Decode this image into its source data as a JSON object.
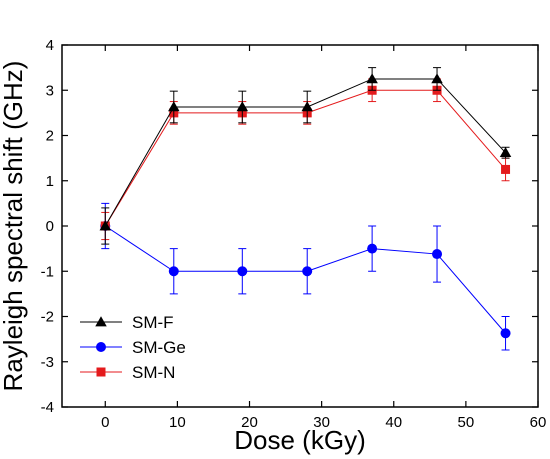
{
  "chart_data": {
    "type": "line",
    "title": "",
    "xlabel": "Dose (kGy)",
    "ylabel": "Rayleigh spectral shift (GHz)",
    "xlim": [
      -6,
      60
    ],
    "ylim": [
      -4,
      4
    ],
    "xticks": [
      0,
      10,
      20,
      30,
      40,
      50,
      60
    ],
    "yticks": [
      -4,
      -3,
      -2,
      -1,
      0,
      1,
      2,
      3,
      4
    ],
    "grid": false,
    "legend_position": "bottom-left",
    "x": [
      0,
      9.5,
      19,
      28,
      37,
      46,
      55.5
    ],
    "series": [
      {
        "name": "SM-F",
        "marker": "triangle",
        "color": "#000000",
        "values": [
          0,
          2.63,
          2.63,
          2.63,
          3.25,
          3.25,
          1.62
        ],
        "error": [
          0.4,
          0.35,
          0.35,
          0.35,
          0.25,
          0.25,
          0.12
        ]
      },
      {
        "name": "SM-Ge",
        "marker": "circle",
        "color": "#0000ff",
        "values": [
          0,
          -1.0,
          -1.0,
          -1.0,
          -0.5,
          -0.62,
          -2.37
        ],
        "error": [
          0.5,
          0.5,
          0.5,
          0.5,
          0.5,
          0.62,
          0.37
        ]
      },
      {
        "name": "SM-N",
        "marker": "square",
        "color": "#e41a1c",
        "values": [
          0,
          2.5,
          2.5,
          2.5,
          3.0,
          3.0,
          1.25
        ],
        "error": [
          0.3,
          0.25,
          0.25,
          0.25,
          0.25,
          0.25,
          0.25
        ]
      }
    ]
  }
}
